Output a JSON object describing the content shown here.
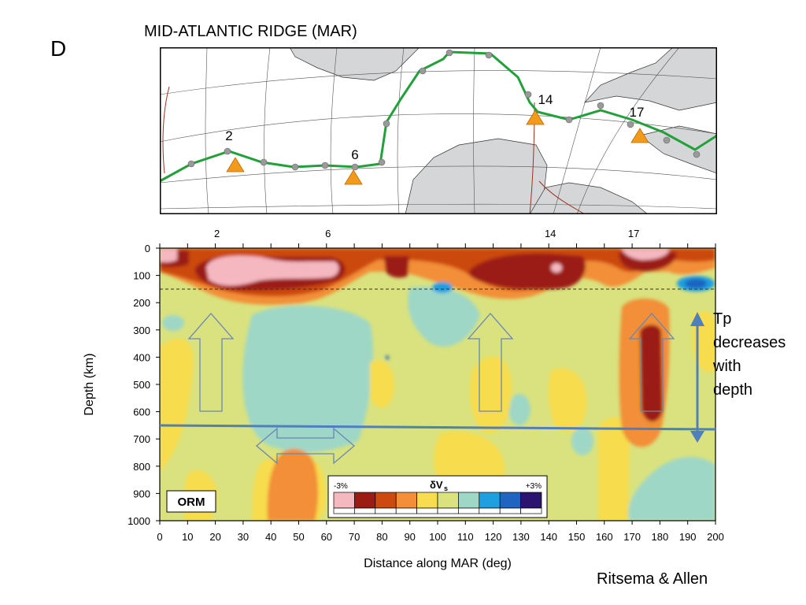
{
  "figure": {
    "panel_letter": "D",
    "map_title": "MID-ATLANTIC RIDGE (MAR)",
    "credit": "Ritsema & Allen",
    "annotation_lines": [
      "Tp",
      "decreases",
      "with",
      "depth"
    ],
    "model_label": "ORM"
  },
  "map": {
    "stations": [
      {
        "label": "2",
        "distance": 27
      },
      {
        "label": "6",
        "distance": 69
      },
      {
        "label": "14",
        "distance": 136
      },
      {
        "label": "17",
        "distance": 174
      }
    ],
    "ridge_color": "#22a13a",
    "land_color": "#d4d6d8",
    "marker_color": "#f29a1c"
  },
  "legend": {
    "min_label": "-3%",
    "max_label": "+3%",
    "symbol": "δV",
    "subscript": "s",
    "colors": [
      "#f5b8c0",
      "#9b1c12",
      "#cc4a10",
      "#f28f38",
      "#f7dc4e",
      "#d9e27e",
      "#9fd7c6",
      "#1e9fe0",
      "#1e64c0",
      "#2a1470"
    ]
  },
  "chart_data": {
    "type": "heatmap",
    "title": "",
    "xlabel": "Distance along MAR (deg)",
    "ylabel": "Depth (km)",
    "xlim": [
      0,
      200
    ],
    "ylim": [
      1000,
      0
    ],
    "x_ticks": [
      0,
      10,
      20,
      30,
      40,
      50,
      60,
      70,
      80,
      90,
      100,
      110,
      120,
      130,
      140,
      150,
      160,
      170,
      180,
      190,
      200
    ],
    "y_ticks": [
      0,
      100,
      200,
      300,
      400,
      500,
      600,
      700,
      800,
      900,
      1000
    ],
    "top_ticks": [
      {
        "label": "2",
        "x": 20
      },
      {
        "label": "6",
        "x": 60
      },
      {
        "label": "14",
        "x": 140
      },
      {
        "label": "17",
        "x": 170
      }
    ],
    "colorbar_range_percent": [
      -3,
      3
    ],
    "reference_depths_km": [
      {
        "depth": 150,
        "style": "dashed"
      },
      {
        "depth": 660,
        "style": "solid"
      }
    ],
    "transition_zone_line_km": [
      650,
      665
    ]
  }
}
